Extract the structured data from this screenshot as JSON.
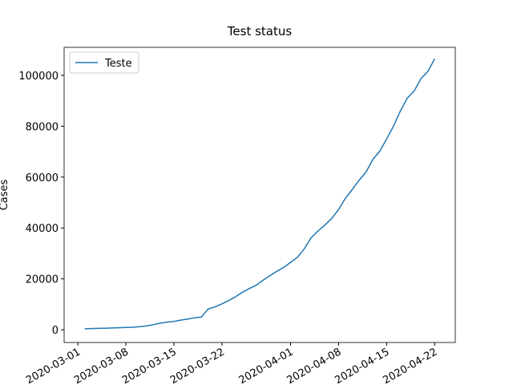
{
  "chart_data": {
    "type": "line",
    "title": "Test status",
    "y_label": "Cases",
    "x": [
      "2020-03-02",
      "2020-03-03",
      "2020-03-04",
      "2020-03-05",
      "2020-03-06",
      "2020-03-07",
      "2020-03-08",
      "2020-03-09",
      "2020-03-10",
      "2020-03-11",
      "2020-03-12",
      "2020-03-13",
      "2020-03-14",
      "2020-03-15",
      "2020-03-16",
      "2020-03-17",
      "2020-03-18",
      "2020-03-19",
      "2020-03-20",
      "2020-03-21",
      "2020-03-22",
      "2020-03-23",
      "2020-03-24",
      "2020-03-25",
      "2020-03-26",
      "2020-03-27",
      "2020-03-28",
      "2020-03-29",
      "2020-03-30",
      "2020-03-31",
      "2020-04-01",
      "2020-04-02",
      "2020-04-03",
      "2020-04-04",
      "2020-04-05",
      "2020-04-06",
      "2020-04-07",
      "2020-04-08",
      "2020-04-09",
      "2020-04-10",
      "2020-04-11",
      "2020-04-12",
      "2020-04-13",
      "2020-04-14",
      "2020-04-15",
      "2020-04-16",
      "2020-04-17",
      "2020-04-18",
      "2020-04-19",
      "2020-04-20",
      "2020-04-21",
      "2020-04-22"
    ],
    "series": [
      {
        "name": "Teste",
        "color": "#1f77b4",
        "values": [
          400,
          500,
          550,
          600,
          700,
          800,
          900,
          1000,
          1200,
          1500,
          2000,
          2600,
          3000,
          3300,
          3800,
          4200,
          4700,
          5000,
          8200,
          9000,
          10200,
          11500,
          13000,
          14800,
          16200,
          17500,
          19500,
          21300,
          23000,
          24500,
          26500,
          28500,
          31800,
          36200,
          38800,
          41200,
          43800,
          47300,
          51700,
          55200,
          58800,
          62000,
          67000,
          70200,
          75000,
          80000,
          86000,
          91000,
          93800,
          98700,
          101500,
          106500
        ]
      }
    ],
    "xlim": [
      "2020-02-28",
      "2020-04-25"
    ],
    "xticks": [
      "2020-03-01",
      "2020-03-08",
      "2020-03-15",
      "2020-03-22",
      "2020-04-01",
      "2020-04-08",
      "2020-04-15",
      "2020-04-22"
    ],
    "ylim": [
      -5000,
      111000
    ],
    "yticks": [
      0,
      20000,
      40000,
      60000,
      80000,
      100000
    ],
    "legend": "upper left"
  }
}
